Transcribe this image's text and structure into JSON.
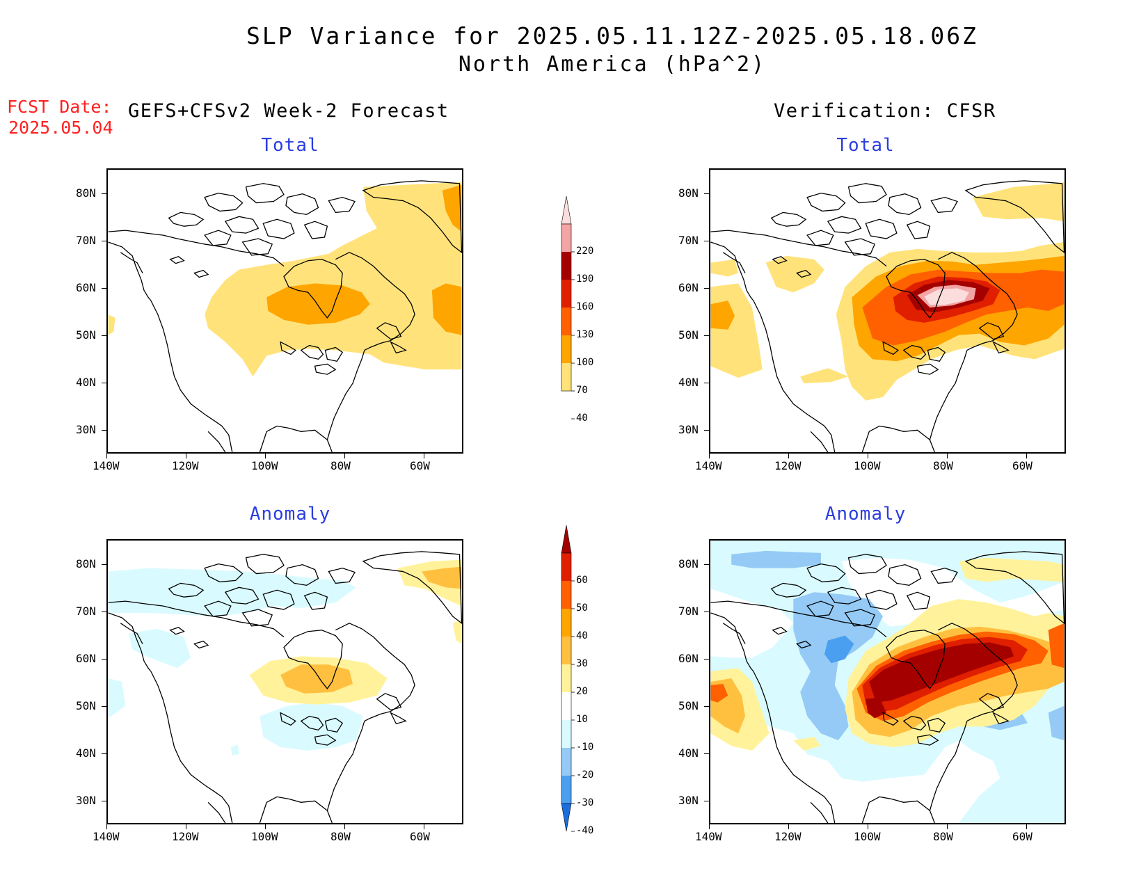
{
  "title": {
    "line1": "SLP Variance for 2025.05.11.12Z-2025.05.18.06Z",
    "line2": "North America (hPa^2)"
  },
  "fcst_date": {
    "label": "FCST Date:",
    "value": "2025.05.04"
  },
  "left_heading": "GEFS+CFSv2 Week-2 Forecast",
  "right_heading": "Verification: CFSR",
  "panels": {
    "forecast_total": {
      "title": "Total"
    },
    "verification_total": {
      "title": "Total"
    },
    "forecast_anomaly": {
      "title": "Anomaly"
    },
    "verification_anomaly": {
      "title": "Anomaly"
    }
  },
  "axes": {
    "lat_labels": [
      "80N",
      "70N",
      "60N",
      "50N",
      "40N",
      "30N"
    ],
    "lon_labels": [
      "140W",
      "120W",
      "100W",
      "80W",
      "60W"
    ]
  },
  "colorbar_total": {
    "levels": [
      "220",
      "190",
      "160",
      "130",
      "100",
      "70",
      "40"
    ],
    "colors": [
      "#fbdddd",
      "#f3a4a4",
      "#a50000",
      "#e01e00",
      "#ff6000",
      "#ffa500",
      "#ffe37a"
    ]
  },
  "colorbar_anomaly": {
    "levels": [
      "60",
      "50",
      "40",
      "30",
      "20",
      "10",
      "-10",
      "-20",
      "-30",
      "-40"
    ],
    "colors": [
      "#a50000",
      "#e01e00",
      "#ff6000",
      "#ffa500",
      "#ffc040",
      "#fff29a",
      "#ffffff",
      "#d9fbff",
      "#94caf5",
      "#4a9ff0",
      "#1a6fdd"
    ]
  },
  "colors": {
    "title_blue": "#2a3de0",
    "fcst_red": "#ff2020"
  }
}
